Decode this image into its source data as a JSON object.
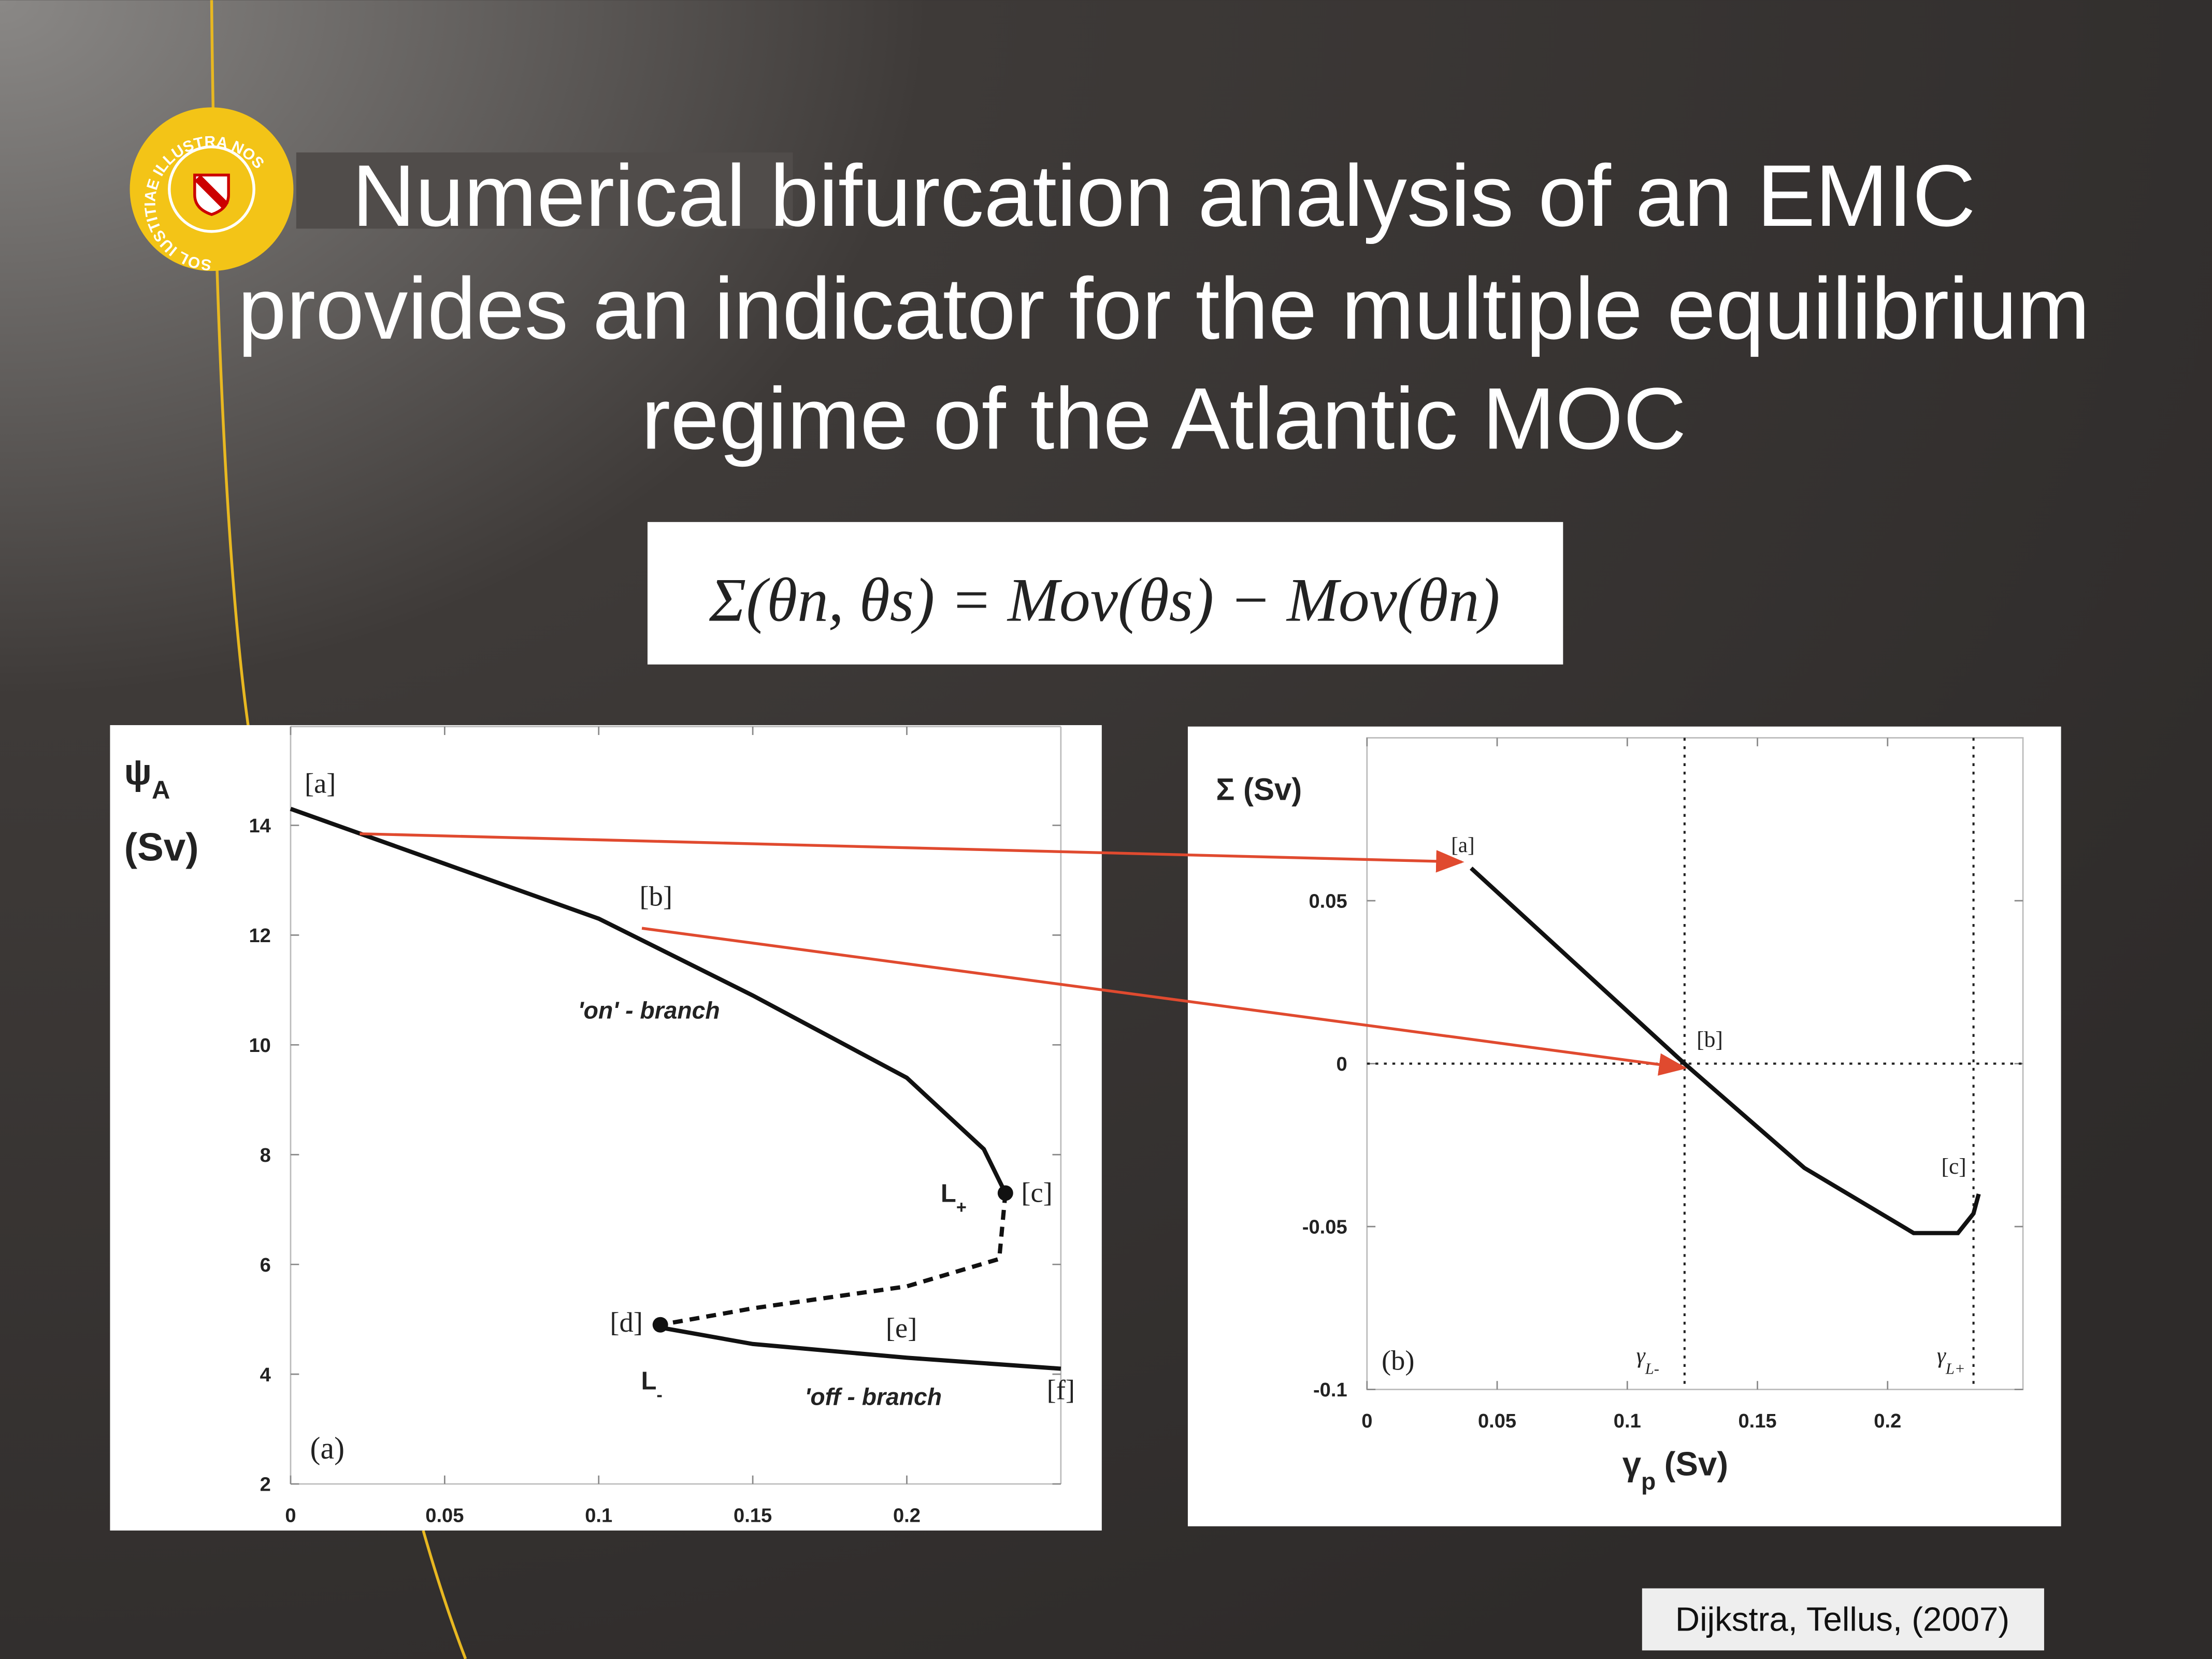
{
  "title_lines": [
    "Numerical bifurcation  analysis of an EMIC",
    "provides an indicator for the multiple  equilibrium",
    "regime of the Atlantic MOC"
  ],
  "logo_text": "SOL IUSTITIAE ILLUSTRA NOS",
  "formula": "Σ(θn, θs) = Mov(θs) − Mov(θn)",
  "citation": "Dijkstra, Tellus, (2007)",
  "chart_data": [
    {
      "type": "line",
      "ylabel_parts": [
        "ψ",
        "A",
        "(Sv)"
      ],
      "xlim": [
        0,
        0.25
      ],
      "ylim": [
        2,
        15.8
      ],
      "xticks": [
        0,
        0.05,
        0.1,
        0.15,
        0.2
      ],
      "yticks": [
        2,
        4,
        6,
        8,
        10,
        12,
        14
      ],
      "series": [
        {
          "color": "#111111",
          "style": "solid",
          "x": [
            0,
            0.05,
            0.1,
            0.15,
            0.2,
            0.225,
            0.232
          ],
          "values": [
            14.3,
            13.3,
            12.3,
            10.9,
            9.4,
            8.1,
            7.3
          ]
        },
        {
          "color": "#111111",
          "style": "dashed",
          "x": [
            0.232,
            0.23,
            0.2,
            0.15,
            0.12
          ],
          "values": [
            7.3,
            6.1,
            5.6,
            5.2,
            4.9
          ]
        },
        {
          "color": "#111111",
          "style": "solid",
          "x": [
            0.12,
            0.15,
            0.2,
            0.25
          ],
          "values": [
            4.85,
            4.55,
            4.3,
            4.1
          ]
        }
      ],
      "points": {
        "x": [
          0.232,
          0.12
        ],
        "values": [
          7.3,
          4.9
        ]
      },
      "annotations": [
        {
          "text": "[a]"
        },
        {
          "text": "[b]"
        },
        {
          "text": "[c]"
        },
        {
          "text": "[d]"
        },
        {
          "text": "[e]"
        },
        {
          "text": "[f]"
        },
        {
          "text": "'on' - branch"
        },
        {
          "text": "'off - branch"
        },
        {
          "text": "L",
          "sub": "+"
        },
        {
          "text": "L",
          "sub": "-"
        },
        {
          "text": "(a)"
        }
      ]
    },
    {
      "type": "line",
      "ylabel": "Σ (Sv)",
      "xlabel_parts": [
        "γ",
        "p",
        "(Sv)"
      ],
      "xlim": [
        0,
        0.252
      ],
      "ylim": [
        -0.1,
        0.1
      ],
      "xticks": [
        0,
        0.05,
        0.1,
        0.15,
        0.2
      ],
      "yticks": [
        -0.1,
        -0.05,
        0,
        0.05
      ],
      "series": [
        {
          "color": "#111111",
          "style": "solid",
          "x": [
            0.04,
            0.122,
            0.168,
            0.21,
            0.227,
            0.233,
            0.235
          ],
          "values": [
            0.06,
            0,
            -0.032,
            -0.052,
            -0.052,
            -0.046,
            -0.04
          ]
        }
      ],
      "vlines": [
        0.122,
        0.233
      ],
      "hlines": [
        0
      ],
      "annotations": [
        {
          "text": "[a]"
        },
        {
          "text": "[b]"
        },
        {
          "text": "[c]"
        },
        {
          "text": "(b)"
        },
        {
          "text": "γ",
          "sub": "L-"
        },
        {
          "text": "γ",
          "sub": "L+"
        }
      ]
    }
  ]
}
